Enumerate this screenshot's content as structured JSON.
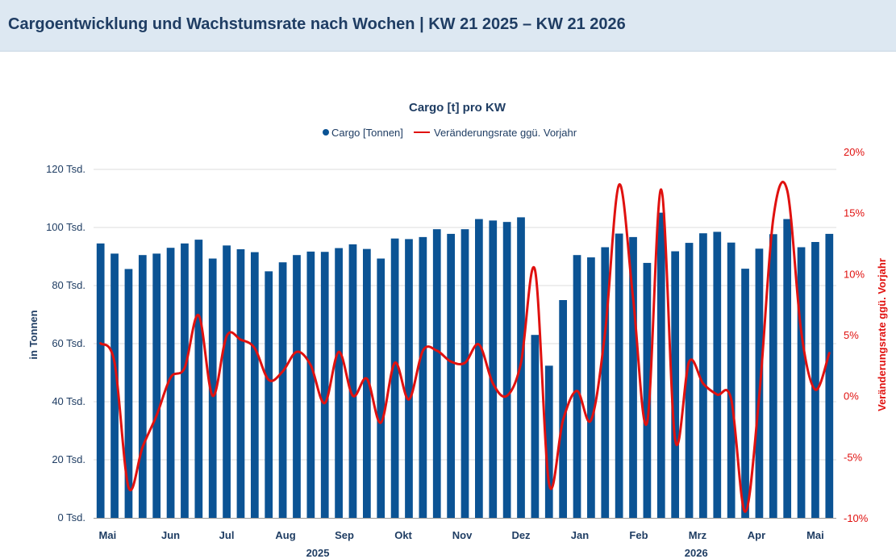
{
  "header": {
    "title": "Cargoentwicklung und Wachstumsrate nach Wochen | KW 21 2025 – KW 21 2026"
  },
  "colors": {
    "bar": "#0b5394",
    "line": "#e0110f",
    "axis_text": "#1f3d63",
    "grid": "#dcdcdc",
    "header_bg": "#dde8f2"
  },
  "chart_data": {
    "type": "bar+line",
    "title": "Cargo [t] pro KW",
    "legend": [
      "Cargo [Tonnen]",
      "Veränderungsrate ggü. Vorjahr"
    ],
    "legend_position": "top-center",
    "ylabel": "in Tonnen",
    "y2label": "Veränderungsrate ggü. Vorjahr",
    "ylim": [
      0,
      120000
    ],
    "y2lim": [
      -10,
      20
    ],
    "y_ticks": [
      "0 Tsd.",
      "20 Tsd.",
      "40 Tsd.",
      "60 Tsd.",
      "80 Tsd.",
      "100 Tsd.",
      "120 Tsd."
    ],
    "y2_ticks": [
      "-10%",
      "-5%",
      "0%",
      "5%",
      "10%",
      "15%",
      "20%"
    ],
    "x_month_labels": [
      "Mai",
      "Jun",
      "Jul",
      "Aug",
      "Sep",
      "Okt",
      "Nov",
      "Dez",
      "Jan",
      "Feb",
      "Mrz",
      "Apr",
      "Mai"
    ],
    "x_month_week_index": [
      0.5,
      5,
      9,
      13.2,
      17.4,
      21.6,
      25.8,
      30,
      34.2,
      38.4,
      42.6,
      46.8,
      51
    ],
    "x_year_labels": [
      "2025",
      "2026"
    ],
    "x_year_week_index": [
      15.5,
      42.5
    ],
    "grid": true,
    "series": [
      {
        "name": "Cargo [Tonnen]",
        "type": "bar",
        "values": [
          94500,
          91000,
          85700,
          90500,
          91000,
          93000,
          94500,
          95800,
          89300,
          93800,
          92500,
          91500,
          84900,
          88000,
          90500,
          91700,
          91600,
          92900,
          94200,
          92600,
          89300,
          96200,
          96000,
          96700,
          99400,
          97800,
          99400,
          102900,
          102400,
          101900,
          103500,
          63000,
          52400,
          75000,
          90500,
          89700,
          93200,
          97900,
          96700,
          87800,
          105100,
          91800,
          94700,
          98000,
          98500,
          94800,
          85800,
          92700,
          97700,
          102900,
          93200,
          95000,
          97800
        ]
      },
      {
        "name": "Veränderungsrate ggü. Vorjahr",
        "type": "line",
        "values": [
          4.3,
          2.7,
          -7.5,
          -4.2,
          -1.6,
          1.5,
          2.3,
          6.6,
          0.0,
          4.9,
          4.6,
          3.9,
          1.3,
          2.0,
          3.6,
          2.5,
          -0.6,
          3.6,
          0.0,
          1.4,
          -2.2,
          2.7,
          -0.3,
          3.7,
          3.7,
          2.8,
          2.7,
          4.2,
          1.0,
          0.0,
          2.7,
          10.3,
          -7.2,
          -2.0,
          0.4,
          -2.0,
          5.2,
          17.3,
          8.0,
          -2.2,
          16.9,
          -3.6,
          2.8,
          1.0,
          0.1,
          -0.3,
          -9.5,
          0.0,
          14.5,
          16.8,
          5.2,
          0.5,
          3.5
        ]
      }
    ]
  }
}
